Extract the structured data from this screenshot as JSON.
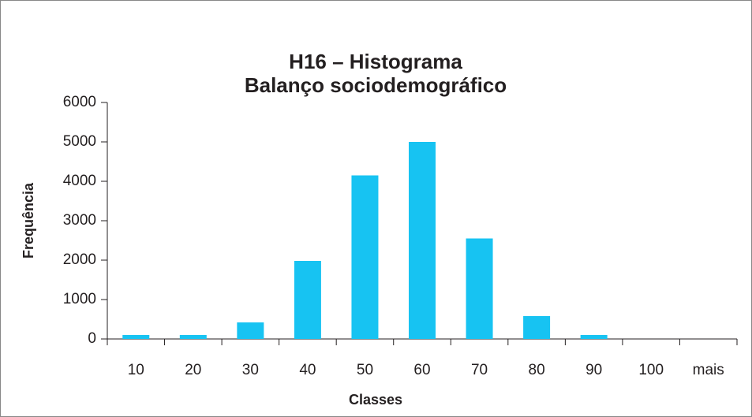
{
  "chart_data": {
    "type": "bar",
    "title": "H16 – Histograma",
    "subtitle": "Balanço sociodemográfico",
    "x_label": "Classes",
    "y_label": "Frequência",
    "categories": [
      "10",
      "20",
      "30",
      "40",
      "50",
      "60",
      "70",
      "80",
      "90",
      "100",
      "mais"
    ],
    "values": [
      100,
      100,
      420,
      1980,
      4150,
      5000,
      2550,
      580,
      100,
      0,
      0
    ],
    "color": "#17c3f2",
    "ylim": [
      0,
      6000
    ],
    "yticks": [
      0,
      1000,
      2000,
      3000,
      4000,
      5000,
      6000
    ],
    "grid": false
  }
}
